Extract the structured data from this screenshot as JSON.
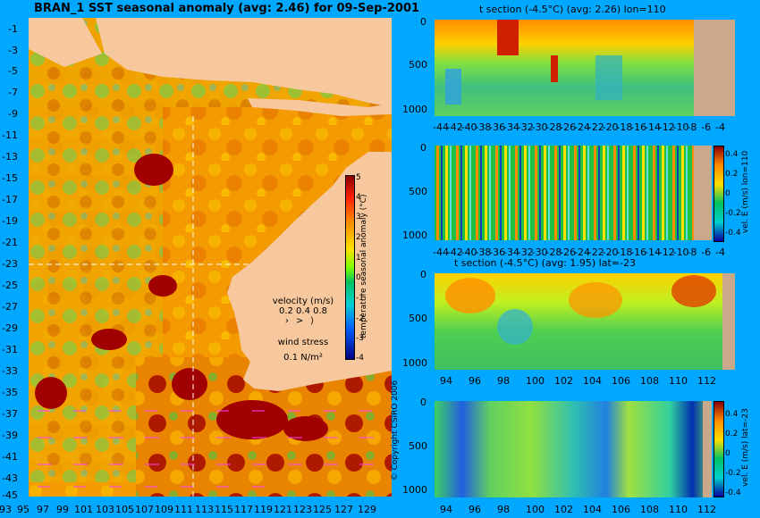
{
  "map": {
    "title": "BRAN_1 SST seasonal anomaly (avg: 2.46) for 09-Sep-2001",
    "lat_labels": [
      "-1",
      "-3",
      "-5",
      "-7",
      "-9",
      "-11",
      "-13",
      "-15",
      "-17",
      "-19",
      "-21",
      "-23",
      "-25",
      "-27",
      "-29",
      "-31",
      "-33",
      "-35",
      "-37",
      "-39",
      "-41",
      "-43",
      "-45"
    ],
    "lon_labels": [
      "93",
      "95",
      "97",
      "99",
      "101",
      "103",
      "105",
      "107",
      "109",
      "111",
      "113",
      "115",
      "117",
      "119",
      "121",
      "123",
      "125",
      "127",
      "129"
    ],
    "colorbar": {
      "label": "temperature seasonal anomaly (°C)",
      "ticks": [
        "5",
        "4",
        "3",
        "2",
        "1",
        "0",
        "-1",
        "-2",
        "-3",
        "-4"
      ],
      "range": [
        -4,
        5
      ]
    },
    "velocity_legend": {
      "title": "velocity (m/s)",
      "values": "0.2 0.4 0.8"
    },
    "wind_legend": {
      "title": "wind stress",
      "value": "0.1 N/m²"
    },
    "copyright": "© Copyright CSIRO 2006",
    "section_lon": 110,
    "section_lat": -23,
    "colors": {
      "land": "#f7c79d",
      "warm": "#ff8c00",
      "hot": "#a00000",
      "cool": "#40c040"
    }
  },
  "chart_data": [
    {
      "type": "heatmap",
      "title": "t section (-4.5°C) (avg: 2.26) lon=110",
      "x_labels": [
        "-44",
        "-42",
        "-40",
        "-38",
        "-36",
        "-34",
        "-32",
        "-30",
        "-28",
        "-26",
        "-24",
        "-22",
        "-20",
        "-18",
        "-16",
        "-14",
        "-12",
        "-10",
        "-8",
        "-6",
        "-4"
      ],
      "y_labels": [
        "0",
        "500",
        "1000"
      ],
      "ylim": [
        0,
        1100
      ],
      "xlim": [
        -45,
        -3
      ]
    },
    {
      "type": "heatmap",
      "title": "",
      "x_labels": [
        "-44",
        "-42",
        "-40",
        "-38",
        "-36",
        "-34",
        "-32",
        "-30",
        "-28",
        "-26",
        "-24",
        "-22",
        "-20",
        "-18",
        "-16",
        "-14",
        "-12",
        "-10",
        "-8",
        "-6",
        "-4"
      ],
      "y_labels": [
        "0",
        "500",
        "1000"
      ],
      "colorbar": {
        "label": "vel. E (m/s) lon=110",
        "ticks": [
          "0.4",
          "0.2",
          "0",
          "-0.2",
          "-0.4"
        ]
      },
      "ylim": [
        0,
        1100
      ]
    },
    {
      "type": "heatmap",
      "title": "t section (-4.5°C) (avg: 1.95) lat=-23",
      "x_labels": [
        "94",
        "96",
        "98",
        "100",
        "102",
        "104",
        "106",
        "108",
        "110",
        "112"
      ],
      "y_labels": [
        "0",
        "500",
        "1000"
      ],
      "ylim": [
        0,
        1100
      ],
      "xlim": [
        93,
        114
      ]
    },
    {
      "type": "heatmap",
      "title": "",
      "x_labels": [
        "94",
        "96",
        "98",
        "100",
        "102",
        "104",
        "106",
        "108",
        "110",
        "112"
      ],
      "y_labels": [
        "0",
        "500",
        "1000"
      ],
      "colorbar": {
        "label": "vel. E (m/s) lat=-23",
        "ticks": [
          "0.4",
          "0.2",
          "0",
          "-0.2",
          "-0.4"
        ]
      },
      "ylim": [
        0,
        1100
      ]
    }
  ]
}
